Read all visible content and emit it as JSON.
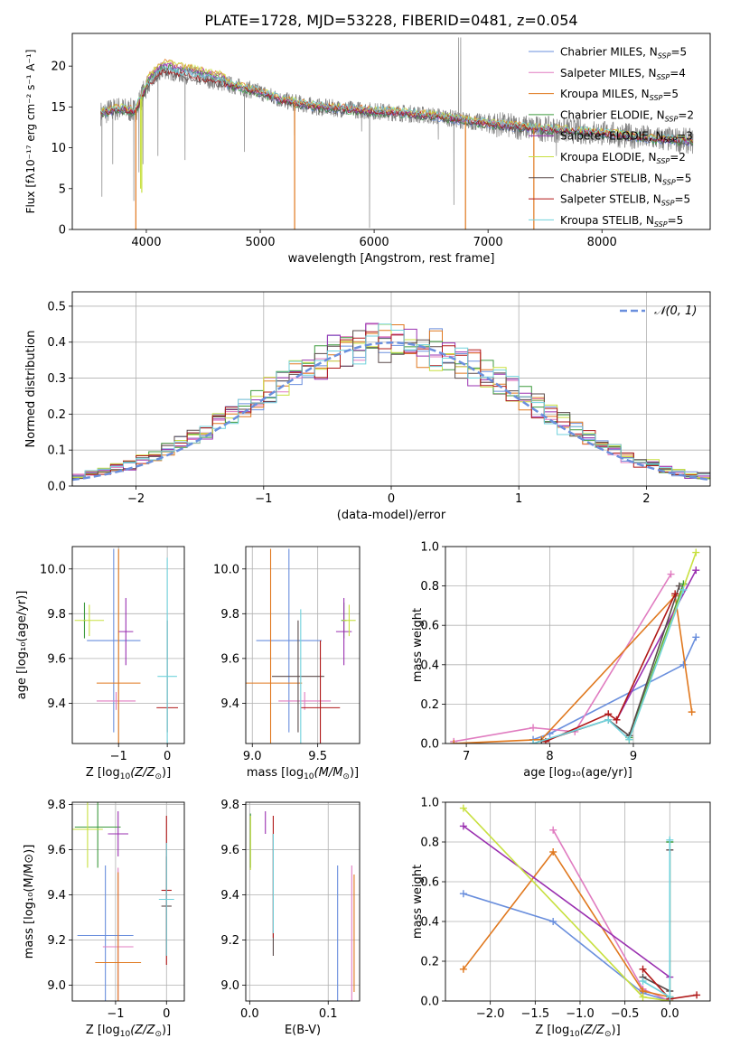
{
  "title": "PLATE=1728, MJD=53228, FIBERID=0481, z=0.054",
  "colors": {
    "chabrier_miles": "#6a8fdd",
    "salpeter_miles": "#e07cc0",
    "kroupa_miles": "#e0781e",
    "chabrier_elodie": "#3c9a3c",
    "salpeter_elodie": "#9a30b0",
    "kroupa_elodie": "#c8e040",
    "chabrier_stelib": "#5a4a4a",
    "salpeter_stelib": "#b01818",
    "kroupa_stelib": "#70d2dc",
    "data": "#808080",
    "normal": "#6a8fdd",
    "grid": "#b0b0b0"
  },
  "chart_data": [
    {
      "id": "spectrum",
      "type": "line",
      "xlabel": "wavelength [Angstrom, rest frame]",
      "ylabel": "Flux [fλ10⁻¹⁷ erg cm⁻² s⁻¹ A⁻¹]",
      "xlim": [
        3350,
        8950
      ],
      "ylim": [
        0,
        24
      ],
      "xticks": [
        4000,
        5000,
        6000,
        7000,
        8000
      ],
      "yticks": [
        0,
        5,
        10,
        15,
        20
      ],
      "legend_position": "top-right",
      "legend": [
        {
          "main": "Chabrier MILES, N",
          "sub": "SSP",
          "tail": "=5",
          "color_key": "chabrier_miles"
        },
        {
          "main": "Salpeter MILES, N",
          "sub": "SSP",
          "tail": "=4",
          "color_key": "salpeter_miles"
        },
        {
          "main": "Kroupa MILES, N",
          "sub": "SSP",
          "tail": "=5",
          "color_key": "kroupa_miles"
        },
        {
          "main": "Chabrier ELODIE, N",
          "sub": "SSP",
          "tail": "=2",
          "color_key": "chabrier_elodie"
        },
        {
          "main": "Salpeter ELODIE, N",
          "sub": "SSP",
          "tail": "=3",
          "color_key": "salpeter_elodie"
        },
        {
          "main": "Kroupa ELODIE, N",
          "sub": "SSP",
          "tail": "=2",
          "color_key": "kroupa_elodie"
        },
        {
          "main": "Chabrier STELIB, N",
          "sub": "SSP",
          "tail": "=5",
          "color_key": "chabrier_stelib"
        },
        {
          "main": "Salpeter STELIB, N",
          "sub": "SSP",
          "tail": "=5",
          "color_key": "salpeter_stelib"
        },
        {
          "main": "Kroupa STELIB, N",
          "sub": "SSP",
          "tail": "=5",
          "color_key": "kroupa_stelib"
        }
      ],
      "data_series": {
        "x_range": [
          3600,
          8800
        ],
        "continuum": [
          [
            3600,
            14.2
          ],
          [
            3750,
            14.8
          ],
          [
            3900,
            14.5
          ],
          [
            4000,
            17.5
          ],
          [
            4150,
            19.5
          ],
          [
            4300,
            19.0
          ],
          [
            4500,
            18.5
          ],
          [
            4800,
            17.5
          ],
          [
            5000,
            16.8
          ],
          [
            5200,
            15.8
          ],
          [
            5500,
            15.0
          ],
          [
            5800,
            14.7
          ],
          [
            6000,
            14.5
          ],
          [
            6300,
            14.2
          ],
          [
            6600,
            13.8
          ],
          [
            6800,
            13.3
          ],
          [
            7000,
            13.0
          ],
          [
            7300,
            12.5
          ],
          [
            7600,
            12.2
          ],
          [
            8000,
            11.8
          ],
          [
            8400,
            11.2
          ],
          [
            8800,
            10.8
          ]
        ],
        "spikes": [
          [
            3610,
            4.0
          ],
          [
            3705,
            8.0
          ],
          [
            3890,
            3.5
          ],
          [
            3935,
            7.0
          ],
          [
            3970,
            8.0
          ],
          [
            4102,
            9.0
          ],
          [
            4340,
            8.5
          ],
          [
            4861,
            9.5
          ],
          [
            5300,
            11.5
          ],
          [
            5890,
            12.0
          ],
          [
            5960,
            0.2
          ],
          [
            6563,
            11.0
          ],
          [
            6700,
            3.0
          ],
          [
            6740,
            23.5
          ],
          [
            6760,
            23.5
          ],
          [
            7600,
            9.0
          ],
          [
            8200,
            10.0
          ]
        ]
      },
      "model_dips": [
        {
          "x": 3908,
          "y": 0.0,
          "color_key": "kroupa_miles"
        },
        {
          "x": 3950,
          "y": 5.0,
          "color_key": "kroupa_elodie"
        },
        {
          "x": 3960,
          "y": 4.5,
          "color_key": "kroupa_elodie"
        },
        {
          "x": 5302,
          "y": 0.0,
          "color_key": "kroupa_miles"
        },
        {
          "x": 6802,
          "y": 0.0,
          "color_key": "kroupa_miles"
        },
        {
          "x": 7402,
          "y": 0.0,
          "color_key": "kroupa_miles"
        }
      ]
    },
    {
      "id": "residuals",
      "type": "line",
      "xlabel": "(data-model)/error",
      "ylabel": "Normed distribution",
      "xlim": [
        -2.5,
        2.5
      ],
      "ylim": [
        0,
        0.54
      ],
      "xticks": [
        -2,
        -1,
        0,
        1,
        2
      ],
      "yticks": [
        0.0,
        0.1,
        0.2,
        0.3,
        0.4,
        0.5
      ],
      "legend_position": "top-right",
      "legend_label": "𝒩(0, 1)",
      "normal": {
        "mu": 0,
        "sigma": 1
      },
      "hist_bins": [
        -2.5,
        2.5,
        50
      ]
    },
    {
      "id": "z_age",
      "type": "scatter",
      "xlabel_main": "Z [log",
      "xlabel_tail": "(Z/Z",
      "ylabel": "age  [log₁₀(age/yr)]",
      "xlim": [
        -1.95,
        0.35
      ],
      "ylim": [
        9.22,
        10.1
      ],
      "xticks": [
        -1,
        0
      ],
      "yticks": [
        9.4,
        9.6,
        9.8,
        10.0
      ],
      "points": [
        {
          "color_key": "chabrier_miles",
          "x": -1.1,
          "y": 9.68,
          "xe": 0.55,
          "ye": 0.41
        },
        {
          "color_key": "salpeter_miles",
          "x": -1.05,
          "y": 9.41,
          "xe": 0.4,
          "ye": 0.04
        },
        {
          "color_key": "kroupa_miles",
          "x": -1.0,
          "y": 9.49,
          "xe": 0.45,
          "ye": 0.6
        },
        {
          "color_key": "chabrier_elodie",
          "x": -1.7,
          "y": 9.77,
          "xe": 0.02,
          "ye": 0.08
        },
        {
          "color_key": "salpeter_elodie",
          "x": -0.85,
          "y": 9.72,
          "xe": 0.15,
          "ye": 0.15
        },
        {
          "color_key": "kroupa_elodie",
          "x": -1.6,
          "y": 9.77,
          "xe": 0.3,
          "ye": 0.07
        },
        {
          "color_key": "chabrier_stelib",
          "x": 0.0,
          "y": 9.52,
          "xe": 0.0,
          "ye": 0.25
        },
        {
          "color_key": "salpeter_stelib",
          "x": 0.0,
          "y": 9.38,
          "xe": 0.22,
          "ye": 0.0
        },
        {
          "color_key": "kroupa_stelib",
          "x": 0.0,
          "y": 9.52,
          "xe": 0.2,
          "ye": 0.53
        }
      ]
    },
    {
      "id": "mass_age",
      "type": "scatter",
      "xlabel_main": "mass [log",
      "xlabel_tail": "(M/M",
      "ylabel": "",
      "xlim": [
        8.95,
        9.82
      ],
      "ylim": [
        9.22,
        10.1
      ],
      "xticks": [
        9.0,
        9.5
      ],
      "yticks": [
        9.4,
        9.6,
        9.8,
        10.0
      ],
      "points": [
        {
          "color_key": "chabrier_miles",
          "x": 9.28,
          "y": 9.68,
          "xe": 0.25,
          "ye": 0.41
        },
        {
          "color_key": "salpeter_miles",
          "x": 9.4,
          "y": 9.41,
          "xe": 0.2,
          "ye": 0.04
        },
        {
          "color_key": "kroupa_miles",
          "x": 9.14,
          "y": 9.49,
          "xe": 0.24,
          "ye": 0.6
        },
        {
          "color_key": "chabrier_elodie",
          "x": 9.7,
          "y": 9.77,
          "xe": 0.02,
          "ye": 0.08
        },
        {
          "color_key": "salpeter_elodie",
          "x": 9.7,
          "y": 9.72,
          "xe": 0.06,
          "ye": 0.15
        },
        {
          "color_key": "kroupa_elodie",
          "x": 9.74,
          "y": 9.77,
          "xe": 0.05,
          "ye": 0.07
        },
        {
          "color_key": "chabrier_stelib",
          "x": 9.35,
          "y": 9.52,
          "xe": 0.2,
          "ye": 0.25
        },
        {
          "color_key": "salpeter_stelib",
          "x": 9.52,
          "y": 9.38,
          "xe": 0.15,
          "ye": 0.3
        },
        {
          "color_key": "kroupa_stelib",
          "x": 9.37,
          "y": 9.52,
          "xe": 0.0,
          "ye": 0.3
        }
      ]
    },
    {
      "id": "age_weight",
      "type": "line",
      "xlabel": "age  [log₁₀(age/yr)]",
      "ylabel": "mass weight",
      "xlim": [
        6.75,
        9.92
      ],
      "ylim": [
        0,
        1.0
      ],
      "xticks": [
        7,
        8,
        9
      ],
      "yticks": [
        0.0,
        0.2,
        0.4,
        0.6,
        0.8,
        1.0
      ],
      "series": [
        {
          "color_key": "chabrier_miles",
          "x": [
            7.8,
            8.0,
            9.6,
            9.75
          ],
          "y": [
            0.02,
            0.05,
            0.4,
            0.54
          ]
        },
        {
          "color_key": "salpeter_miles",
          "x": [
            6.85,
            7.8,
            8.3,
            9.45
          ],
          "y": [
            0.01,
            0.08,
            0.06,
            0.86
          ]
        },
        {
          "color_key": "kroupa_miles",
          "x": [
            6.85,
            7.9,
            9.5,
            9.7
          ],
          "y": [
            0.0,
            0.02,
            0.75,
            0.16
          ]
        },
        {
          "color_key": "chabrier_elodie",
          "x": [
            8.95,
            9.6
          ],
          "y": [
            0.03,
            0.81
          ]
        },
        {
          "color_key": "salpeter_elodie",
          "x": [
            8.8,
            9.75
          ],
          "y": [
            0.12,
            0.88
          ]
        },
        {
          "color_key": "kroupa_elodie",
          "x": [
            8.95,
            9.75
          ],
          "y": [
            0.02,
            0.97
          ]
        },
        {
          "color_key": "chabrier_stelib",
          "x": [
            7.9,
            8.7,
            8.95,
            9.55
          ],
          "y": [
            0.01,
            0.12,
            0.04,
            0.8
          ]
        },
        {
          "color_key": "salpeter_stelib",
          "x": [
            7.95,
            8.7,
            8.8,
            9.5
          ],
          "y": [
            0.01,
            0.15,
            0.12,
            0.76
          ]
        },
        {
          "color_key": "kroupa_stelib",
          "x": [
            7.8,
            8.7,
            8.95,
            9.6
          ],
          "y": [
            0.0,
            0.12,
            0.02,
            0.78
          ]
        }
      ]
    },
    {
      "id": "z_mass",
      "type": "scatter",
      "xlabel_main": "Z [log",
      "xlabel_tail": "(Z/Z",
      "ylabel": "mass [log₁₀(M/M⊙)]",
      "xlim": [
        -1.85,
        0.35
      ],
      "ylim": [
        8.93,
        9.81
      ],
      "xticks": [
        -1,
        0
      ],
      "yticks": [
        9.0,
        9.2,
        9.4,
        9.6,
        9.8
      ],
      "points": [
        {
          "color_key": "chabrier_miles",
          "x": -1.2,
          "y": 9.22,
          "xe": 0.55,
          "ye": 0.31
        },
        {
          "color_key": "salpeter_miles",
          "x": -0.95,
          "y": 9.17,
          "xe": 0.3,
          "ye": 0.35
        },
        {
          "color_key": "kroupa_miles",
          "x": -0.95,
          "y": 9.1,
          "xe": 0.45,
          "ye": 0.4
        },
        {
          "color_key": "chabrier_elodie",
          "x": -1.35,
          "y": 9.7,
          "xe": 0.45,
          "ye": 0.18
        },
        {
          "color_key": "salpeter_elodie",
          "x": -0.95,
          "y": 9.67,
          "xe": 0.2,
          "ye": 0.1
        },
        {
          "color_key": "kroupa_elodie",
          "x": -1.55,
          "y": 9.69,
          "xe": 0.3,
          "ye": 0.17
        },
        {
          "color_key": "chabrier_stelib",
          "x": 0.0,
          "y": 9.35,
          "xe": 0.1,
          "ye": 0.22
        },
        {
          "color_key": "salpeter_stelib",
          "x": 0.0,
          "y": 9.42,
          "xe": 0.1,
          "ye": 0.33
        },
        {
          "color_key": "kroupa_stelib",
          "x": 0.0,
          "y": 9.38,
          "xe": 0.15,
          "ye": 0.25
        }
      ]
    },
    {
      "id": "ebv_mass",
      "type": "scatter",
      "xlabel": "E(B-V)",
      "ylabel": "",
      "xlim": [
        -0.005,
        0.14
      ],
      "ylim": [
        8.93,
        9.81
      ],
      "xticks": [
        0.0,
        0.1
      ],
      "yticks": [
        9.0,
        9.2,
        9.4,
        9.6,
        9.8
      ],
      "points": [
        {
          "color_key": "chabrier_miles",
          "x": 0.112,
          "y": 9.23,
          "xe": 0.0,
          "ye": 0.3
        },
        {
          "color_key": "salpeter_miles",
          "x": 0.13,
          "y": 9.22,
          "xe": 0.0,
          "ye": 0.31
        },
        {
          "color_key": "kroupa_miles",
          "x": 0.133,
          "y": 9.23,
          "xe": 0.0,
          "ye": 0.26
        },
        {
          "color_key": "chabrier_elodie",
          "x": 0.001,
          "y": 9.64,
          "xe": 0.0,
          "ye": 0.12
        },
        {
          "color_key": "salpeter_elodie",
          "x": 0.02,
          "y": 9.72,
          "xe": 0.0,
          "ye": 0.05
        },
        {
          "color_key": "kroupa_elodie",
          "x": 0.001,
          "y": 9.63,
          "xe": 0.0,
          "ye": 0.12
        },
        {
          "color_key": "chabrier_stelib",
          "x": 0.03,
          "y": 9.4,
          "xe": 0.0,
          "ye": 0.27
        },
        {
          "color_key": "salpeter_stelib",
          "x": 0.03,
          "y": 9.48,
          "xe": 0.0,
          "ye": 0.27
        },
        {
          "color_key": "kroupa_stelib",
          "x": 0.03,
          "y": 9.45,
          "xe": 0.0,
          "ye": 0.22
        }
      ]
    },
    {
      "id": "z_weight",
      "type": "line",
      "xlabel_main": "Z [log",
      "xlabel_tail": "(Z/Z",
      "ylabel": "mass weight",
      "xlim": [
        -2.5,
        0.45
      ],
      "ylim": [
        0,
        1.0
      ],
      "xticks": [
        -2.0,
        -1.5,
        -1.0,
        -0.5,
        0.0
      ],
      "yticks": [
        0.0,
        0.2,
        0.4,
        0.6,
        0.8,
        1.0
      ],
      "series": [
        {
          "color_key": "chabrier_miles",
          "x": [
            -2.3,
            -1.3,
            -0.3,
            0.0
          ],
          "y": [
            0.54,
            0.4,
            0.04,
            0.0
          ]
        },
        {
          "color_key": "salpeter_miles",
          "x": [
            -1.3,
            -0.3,
            0.0
          ],
          "y": [
            0.86,
            0.06,
            0.0
          ]
        },
        {
          "color_key": "kroupa_miles",
          "x": [
            -2.3,
            -1.3,
            -0.3,
            0.0
          ],
          "y": [
            0.16,
            0.75,
            0.05,
            0.02
          ]
        },
        {
          "color_key": "chabrier_elodie",
          "x": [
            0.0,
            0.0
          ],
          "y": [
            0.8,
            0.02
          ]
        },
        {
          "color_key": "salpeter_elodie",
          "x": [
            -2.3,
            0.0
          ],
          "y": [
            0.88,
            0.12
          ]
        },
        {
          "color_key": "kroupa_elodie",
          "x": [
            -2.3,
            -0.3,
            0.0
          ],
          "y": [
            0.97,
            0.02,
            0.0
          ]
        },
        {
          "color_key": "chabrier_stelib",
          "x": [
            -0.3,
            0.0,
            0.0
          ],
          "y": [
            0.12,
            0.05,
            0.76
          ]
        },
        {
          "color_key": "salpeter_stelib",
          "x": [
            -0.3,
            0.0,
            0.3
          ],
          "y": [
            0.16,
            0.01,
            0.03
          ]
        },
        {
          "color_key": "kroupa_stelib",
          "x": [
            -0.3,
            0.0,
            0.0
          ],
          "y": [
            0.1,
            0.02,
            0.81
          ]
        }
      ]
    }
  ]
}
